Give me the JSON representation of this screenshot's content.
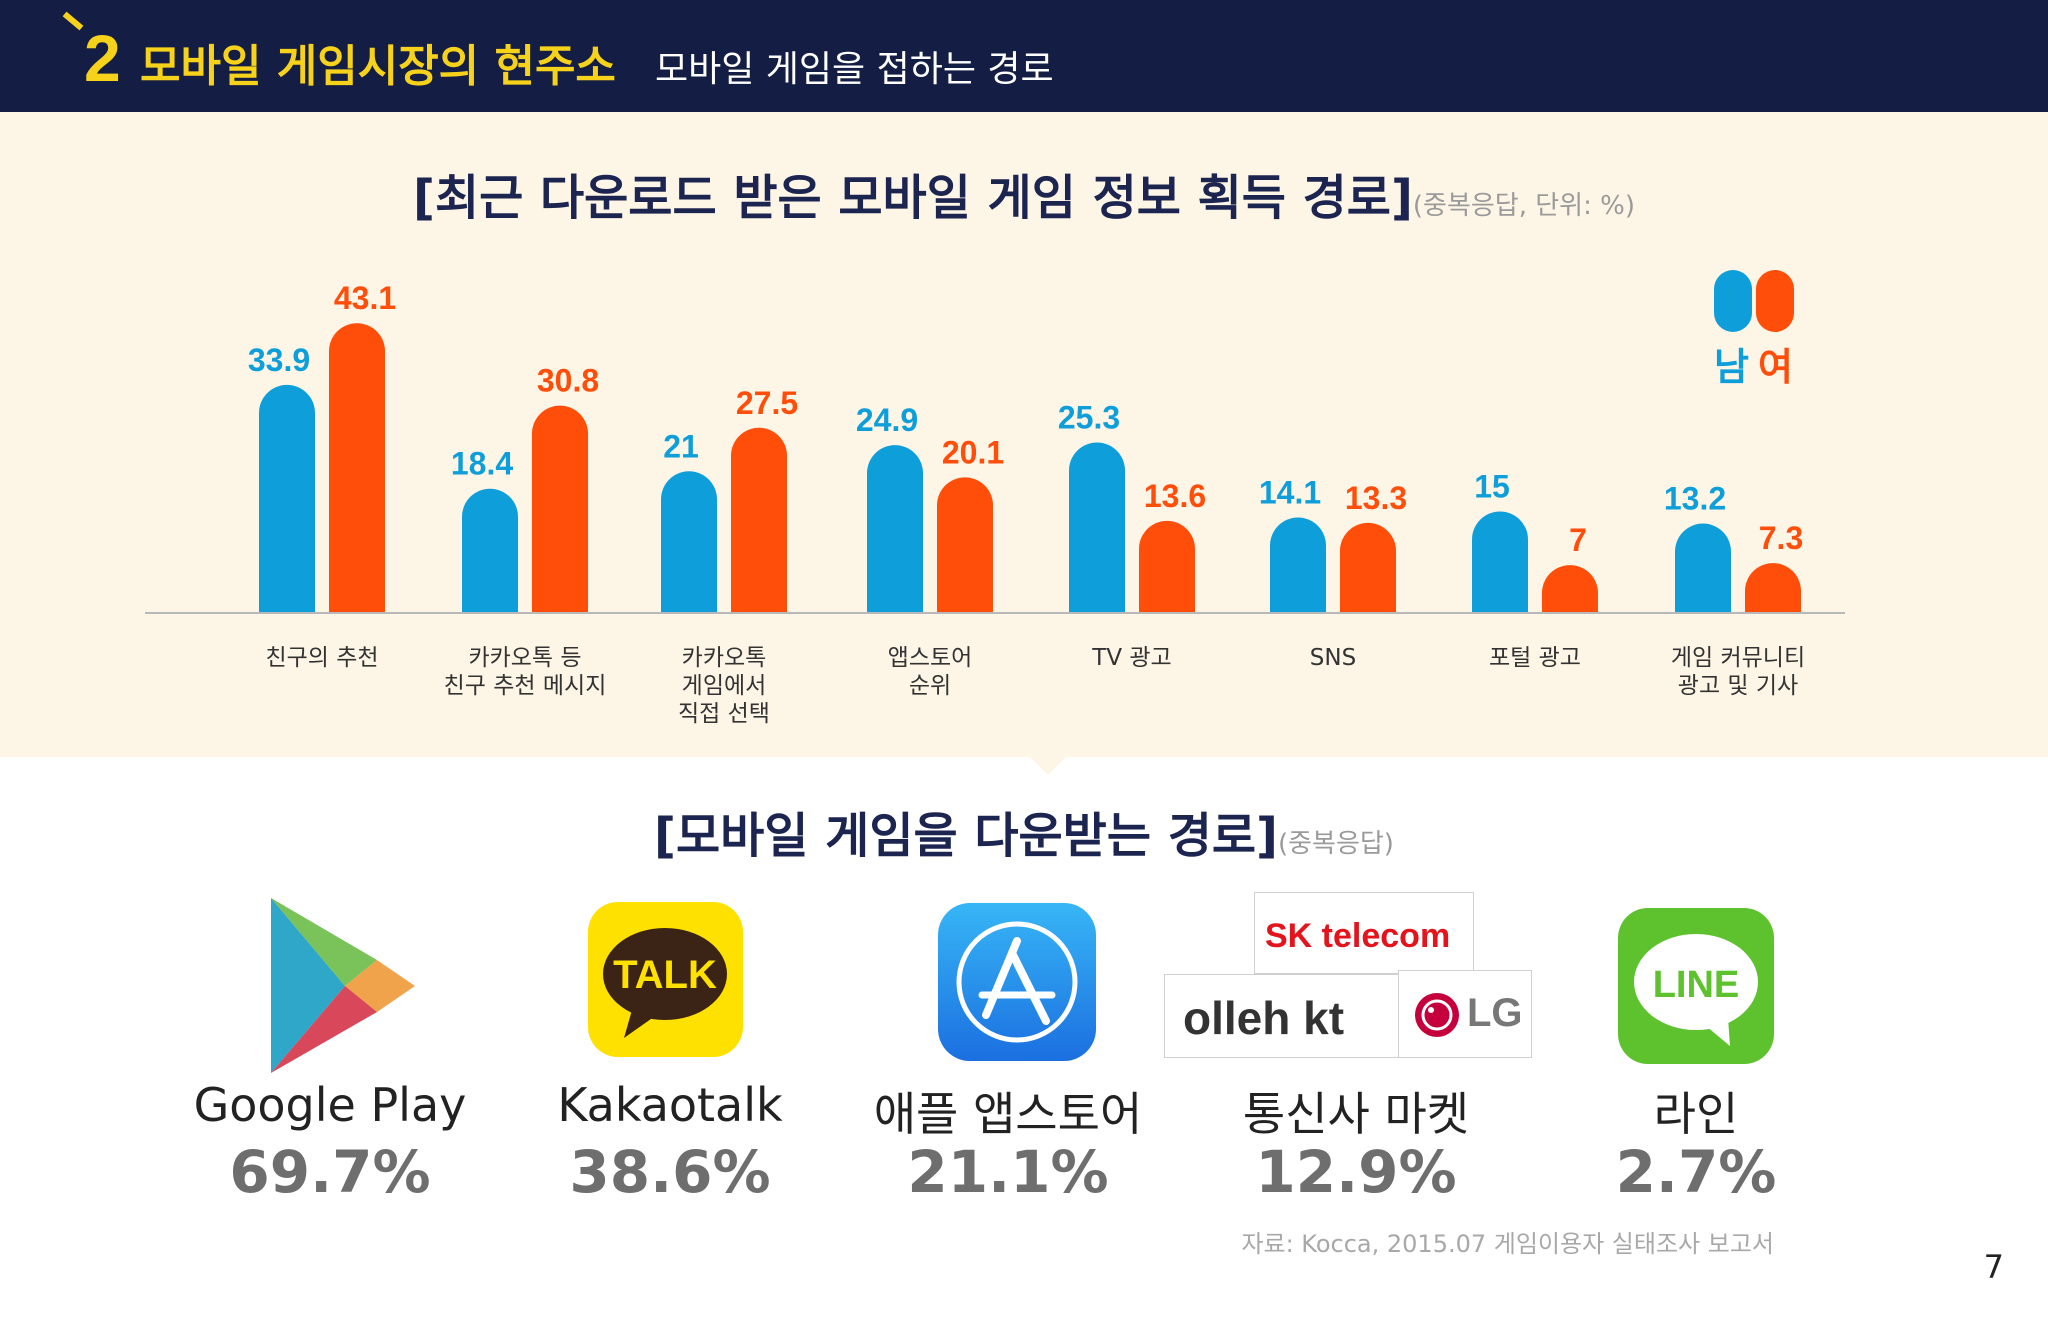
{
  "header": {
    "number": "2",
    "title": "모바일 게임시장의 현주소",
    "subtitle": "모바일 게임을 접하는 경로"
  },
  "colors": {
    "male": "#0e9fdb",
    "female": "#ff4d0a",
    "navy": "#141d44",
    "accent": "#f7d21a"
  },
  "chart_data": {
    "type": "bar",
    "title": "[최근 다운로드 받은 모바일 게임 정보 획득 경로]",
    "note": "(중복응답, 단위: %)",
    "categories": [
      [
        "친구의 추천"
      ],
      [
        "카카오톡 등",
        "친구 추천 메시지"
      ],
      [
        "카카오톡",
        "게임에서",
        "직접 선택"
      ],
      [
        "앱스토어",
        "순위"
      ],
      [
        "TV 광고"
      ],
      [
        "SNS"
      ],
      [
        "포털 광고"
      ],
      [
        "게임 커뮤니티",
        "광고 및 기사"
      ]
    ],
    "series": [
      {
        "name": "남",
        "values": [
          33.9,
          18.4,
          21,
          24.9,
          25.3,
          14.1,
          15,
          13.2
        ]
      },
      {
        "name": "여",
        "values": [
          43.1,
          30.8,
          27.5,
          20.1,
          13.6,
          13.3,
          7,
          7.3
        ]
      }
    ],
    "ylim": [
      0,
      50
    ],
    "legend": "top-right",
    "grid": false
  },
  "section2": {
    "title": "[모바일 게임을 다운받는 경로]",
    "note": "(중복응답)"
  },
  "platforms": [
    {
      "name": "Google Play",
      "percent": "69.7%",
      "icon": "google-play-icon"
    },
    {
      "name": "Kakaotalk",
      "percent": "38.6%",
      "icon": "kakaotalk-icon",
      "logo_text": "TALK"
    },
    {
      "name": "애플 앱스토어",
      "percent": "21.1%",
      "icon": "app-store-icon"
    },
    {
      "name": "통신사 마켓",
      "percent": "12.9%",
      "icon": "telecom-logos-icon",
      "logo_text": [
        "SK telecom",
        "olleh kt",
        "LG"
      ]
    },
    {
      "name": "라인",
      "percent": "2.7%",
      "icon": "line-icon",
      "logo_text": "LINE"
    }
  ],
  "source": "자료: Kocca, 2015.07 게임이용자 실태조사 보고서",
  "page_number": "7"
}
